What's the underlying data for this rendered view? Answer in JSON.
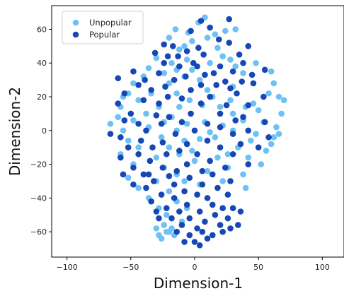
{
  "chart_data": {
    "type": "scatter",
    "xlabel": "Dimension-1",
    "ylabel": "Dimension-2",
    "xlim": [
      -112,
      117
    ],
    "ylim": [
      -75,
      74
    ],
    "xticks": [
      -100,
      -50,
      0,
      50,
      100
    ],
    "yticks": [
      -60,
      -40,
      -20,
      0,
      20,
      40,
      60
    ],
    "grid": false,
    "legend_position": "top-left",
    "series": [
      {
        "name": "Unpopular",
        "color": "#6ec1f5",
        "points": [
          [
            8,
            67
          ],
          [
            3,
            64
          ],
          [
            -15,
            60
          ],
          [
            -5,
            58
          ],
          [
            16,
            57
          ],
          [
            24,
            59
          ],
          [
            32,
            60
          ],
          [
            -20,
            55
          ],
          [
            10,
            55
          ],
          [
            -12,
            48
          ],
          [
            -2,
            53
          ],
          [
            18,
            49
          ],
          [
            -8,
            50
          ],
          [
            -30,
            43
          ],
          [
            -18,
            40
          ],
          [
            22,
            44
          ],
          [
            28,
            42
          ],
          [
            -6,
            42
          ],
          [
            12,
            40
          ],
          [
            32,
            38
          ],
          [
            -36,
            37
          ],
          [
            -14,
            36
          ],
          [
            -2,
            36
          ],
          [
            48,
            40
          ],
          [
            60,
            35
          ],
          [
            38,
            34
          ],
          [
            -24,
            34
          ],
          [
            -40,
            32
          ],
          [
            -8,
            32
          ],
          [
            4,
            30
          ],
          [
            -48,
            28
          ],
          [
            -20,
            28
          ],
          [
            10,
            24
          ],
          [
            30,
            26
          ],
          [
            62,
            28
          ],
          [
            -52,
            22
          ],
          [
            -34,
            22
          ],
          [
            -14,
            22
          ],
          [
            58,
            22
          ],
          [
            70,
            18
          ],
          [
            -56,
            20
          ],
          [
            -44,
            18
          ],
          [
            -4,
            18
          ],
          [
            14,
            20
          ],
          [
            28,
            18
          ],
          [
            46,
            16
          ],
          [
            66,
            20
          ],
          [
            -58,
            14
          ],
          [
            -28,
            14
          ],
          [
            -12,
            14
          ],
          [
            6,
            15
          ],
          [
            20,
            14
          ],
          [
            40,
            14
          ],
          [
            -60,
            8
          ],
          [
            -38,
            10
          ],
          [
            -18,
            8
          ],
          [
            30,
            10
          ],
          [
            50,
            12
          ],
          [
            68,
            10
          ],
          [
            -66,
            4
          ],
          [
            -48,
            6
          ],
          [
            -24,
            5
          ],
          [
            -6,
            4
          ],
          [
            8,
            5
          ],
          [
            22,
            3
          ],
          [
            38,
            6
          ],
          [
            54,
            5
          ],
          [
            64,
            2
          ],
          [
            -56,
            0
          ],
          [
            -36,
            2
          ],
          [
            -14,
            0
          ],
          [
            12,
            -1
          ],
          [
            30,
            0
          ],
          [
            48,
            -2
          ],
          [
            66,
            -2
          ],
          [
            -52,
            -6
          ],
          [
            -26,
            -4
          ],
          [
            -8,
            -6
          ],
          [
            4,
            -5
          ],
          [
            16,
            -4
          ],
          [
            -44,
            -10
          ],
          [
            -20,
            -10
          ],
          [
            -2,
            -12
          ],
          [
            34,
            -10
          ],
          [
            60,
            -8
          ],
          [
            -58,
            -14
          ],
          [
            -30,
            -16
          ],
          [
            -12,
            -14
          ],
          [
            18,
            -16
          ],
          [
            42,
            -16
          ],
          [
            -48,
            -20
          ],
          [
            -24,
            -22
          ],
          [
            0,
            -18
          ],
          [
            26,
            -22
          ],
          [
            52,
            -20
          ],
          [
            -40,
            -26
          ],
          [
            -14,
            -26
          ],
          [
            10,
            -24
          ],
          [
            38,
            -26
          ],
          [
            -52,
            -28
          ],
          [
            -30,
            -30
          ],
          [
            -8,
            -30
          ],
          [
            22,
            -30
          ],
          [
            -44,
            -34
          ],
          [
            -20,
            -36
          ],
          [
            4,
            -32
          ],
          [
            -36,
            -40
          ],
          [
            -14,
            -42
          ],
          [
            -28,
            -46
          ],
          [
            -6,
            -46
          ],
          [
            -22,
            -50
          ],
          [
            -10,
            -54
          ],
          [
            -24,
            -56
          ],
          [
            -18,
            -58
          ],
          [
            -30,
            -58
          ],
          [
            -22,
            -60
          ],
          [
            -28,
            -62
          ],
          [
            -16,
            -62
          ],
          [
            -26,
            -64
          ],
          [
            -20,
            -60
          ],
          [
            44,
            -6
          ],
          [
            56,
            -12
          ],
          [
            26,
            -14
          ],
          [
            62,
            -4
          ],
          [
            40,
            -34
          ]
        ]
      },
      {
        "name": "Popular",
        "color": "#1547b5",
        "points": [
          [
            5,
            65
          ],
          [
            12,
            61
          ],
          [
            27,
            66
          ],
          [
            -3,
            59
          ],
          [
            19,
            54
          ],
          [
            -17,
            50
          ],
          [
            -24,
            51
          ],
          [
            3,
            49
          ],
          [
            -6,
            47
          ],
          [
            27,
            52
          ],
          [
            42,
            50
          ],
          [
            -21,
            44
          ],
          [
            7,
            45
          ],
          [
            -31,
            46
          ],
          [
            35,
            45
          ],
          [
            -13,
            44
          ],
          [
            38,
            40
          ],
          [
            -24,
            40
          ],
          [
            2,
            38
          ],
          [
            20,
            38
          ],
          [
            -1,
            40
          ],
          [
            -12,
            38
          ],
          [
            30,
            35
          ],
          [
            -48,
            35
          ],
          [
            -28,
            34
          ],
          [
            15,
            34
          ],
          [
            45,
            33
          ],
          [
            8,
            33
          ],
          [
            55,
            36
          ],
          [
            -7,
            32
          ],
          [
            -39,
            30
          ],
          [
            -16,
            30
          ],
          [
            24,
            29
          ],
          [
            -60,
            31
          ],
          [
            37,
            29
          ],
          [
            -44,
            27
          ],
          [
            5,
            27
          ],
          [
            17,
            27
          ],
          [
            46,
            28
          ],
          [
            -23,
            26
          ],
          [
            28,
            25
          ],
          [
            -3,
            24
          ],
          [
            -34,
            24
          ],
          [
            -55,
            22
          ],
          [
            33,
            22
          ],
          [
            12,
            20
          ],
          [
            54,
            20
          ],
          [
            -21,
            20
          ],
          [
            -10,
            19
          ],
          [
            -40,
            18
          ],
          [
            -28,
            16
          ],
          [
            -60,
            16
          ],
          [
            5,
            16
          ],
          [
            25,
            15
          ],
          [
            42,
            15
          ],
          [
            20,
            10
          ],
          [
            -50,
            10
          ],
          [
            -3,
            10
          ],
          [
            -30,
            9
          ],
          [
            38,
            8
          ],
          [
            -20,
            8
          ],
          [
            -55,
            6
          ],
          [
            32,
            6
          ],
          [
            -10,
            5
          ],
          [
            55,
            5
          ],
          [
            -44,
            4
          ],
          [
            10,
            4
          ],
          [
            -26,
            4
          ],
          [
            20,
            2
          ],
          [
            -66,
            -2
          ],
          [
            -38,
            0
          ],
          [
            0,
            0
          ],
          [
            42,
            0
          ],
          [
            -15,
            -2
          ],
          [
            30,
            -2
          ],
          [
            -58,
            -4
          ],
          [
            58,
            -4
          ],
          [
            -42,
            -6
          ],
          [
            10,
            -6
          ],
          [
            -25,
            -7
          ],
          [
            -6,
            -8
          ],
          [
            36,
            -8
          ],
          [
            -52,
            -10
          ],
          [
            -33,
            -10
          ],
          [
            20,
            -10
          ],
          [
            50,
            -10
          ],
          [
            -12,
            -12
          ],
          [
            -44,
            -14
          ],
          [
            -22,
            -14
          ],
          [
            2,
            -14
          ],
          [
            30,
            -14
          ],
          [
            -58,
            -16
          ],
          [
            -35,
            -18
          ],
          [
            12,
            -18
          ],
          [
            -6,
            -20
          ],
          [
            42,
            -20
          ],
          [
            -48,
            -22
          ],
          [
            -25,
            -22
          ],
          [
            24,
            -22
          ],
          [
            -14,
            -24
          ],
          [
            6,
            -24
          ],
          [
            -40,
            -26
          ],
          [
            -56,
            -26
          ],
          [
            -20,
            -27
          ],
          [
            14,
            -26
          ],
          [
            -32,
            -30
          ],
          [
            -4,
            -28
          ],
          [
            28,
            -30
          ],
          [
            -48,
            -32
          ],
          [
            -16,
            -32
          ],
          [
            6,
            -32
          ],
          [
            -38,
            -34
          ],
          [
            18,
            -34
          ],
          [
            -8,
            -36
          ],
          [
            -26,
            -38
          ],
          [
            2,
            -38
          ],
          [
            26,
            -38
          ],
          [
            -16,
            -40
          ],
          [
            10,
            -40
          ],
          [
            -34,
            -42
          ],
          [
            -6,
            -44
          ],
          [
            14,
            -44
          ],
          [
            -22,
            -46
          ],
          [
            22,
            -46
          ],
          [
            -12,
            -48
          ],
          [
            4,
            -48
          ],
          [
            30,
            -46
          ],
          [
            -30,
            -48
          ],
          [
            -4,
            -52
          ],
          [
            16,
            -50
          ],
          [
            -18,
            -52
          ],
          [
            8,
            -54
          ],
          [
            26,
            -52
          ],
          [
            -10,
            -56
          ],
          [
            2,
            -58
          ],
          [
            20,
            -56
          ],
          [
            34,
            -56
          ],
          [
            -14,
            -60
          ],
          [
            6,
            -60
          ],
          [
            14,
            -62
          ],
          [
            -4,
            -62
          ],
          [
            22,
            -60
          ],
          [
            10,
            -64
          ],
          [
            0,
            -66
          ],
          [
            4,
            -68
          ],
          [
            28,
            -58
          ],
          [
            -8,
            -66
          ],
          [
            -28,
            -52
          ],
          [
            36,
            -48
          ],
          [
            -36,
            -26
          ]
        ]
      }
    ]
  }
}
